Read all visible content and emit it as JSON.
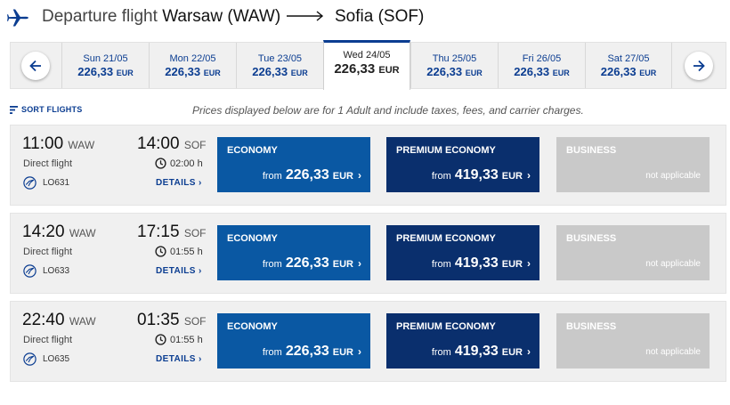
{
  "header": {
    "label": "Departure flight",
    "origin": "Warsaw (WAW)",
    "destination": "Sofia (SOF)"
  },
  "dates": [
    {
      "label": "Sun 21/05",
      "price": "226,33",
      "currency": "EUR",
      "selected": false
    },
    {
      "label": "Mon 22/05",
      "price": "226,33",
      "currency": "EUR",
      "selected": false
    },
    {
      "label": "Tue 23/05",
      "price": "226,33",
      "currency": "EUR",
      "selected": false
    },
    {
      "label": "Wed 24/05",
      "price": "226,33",
      "currency": "EUR",
      "selected": true
    },
    {
      "label": "Thu 25/05",
      "price": "226,33",
      "currency": "EUR",
      "selected": false
    },
    {
      "label": "Fri 26/05",
      "price": "226,33",
      "currency": "EUR",
      "selected": false
    },
    {
      "label": "Sat 27/05",
      "price": "226,33",
      "currency": "EUR",
      "selected": false
    }
  ],
  "sort_label": "SORT FLIGHTS",
  "notice": "Prices displayed below are for 1 Adult and include taxes, fees, and carrier charges.",
  "labels": {
    "direct": "Direct flight",
    "details": "DETAILS",
    "from": "from",
    "not_applicable": "not applicable",
    "economy": "ECONOMY",
    "premium": "PREMIUM ECONOMY",
    "business": "BUSINESS",
    "currency": "EUR"
  },
  "flights": [
    {
      "dep_time": "11:00",
      "dep_code": "WAW",
      "arr_time": "14:00",
      "arr_code": "SOF",
      "duration": "02:00 h",
      "flight_no": "LO631",
      "economy_price": "226,33",
      "premium_price": "419,33"
    },
    {
      "dep_time": "14:20",
      "dep_code": "WAW",
      "arr_time": "17:15",
      "arr_code": "SOF",
      "duration": "01:55 h",
      "flight_no": "LO633",
      "economy_price": "226,33",
      "premium_price": "419,33"
    },
    {
      "dep_time": "22:40",
      "dep_code": "WAW",
      "arr_time": "01:35",
      "arr_code": "SOF",
      "duration": "01:55 h",
      "flight_no": "LO635",
      "economy_price": "226,33",
      "premium_price": "419,33"
    }
  ],
  "colors": {
    "accent": "#0b3d91",
    "economy": "#0a58a3",
    "premium": "#0a2f6d",
    "business_disabled": "#c9c9c9"
  },
  "icons": {
    "plane": "airplane-icon",
    "arrow": "long-right-arrow-icon",
    "prev": "arrow-left-icon",
    "next": "arrow-right-icon",
    "sort": "sort-icon",
    "clock": "clock-icon",
    "airline": "lot-crane-logo-icon",
    "chevron": "chevron-right-icon"
  }
}
